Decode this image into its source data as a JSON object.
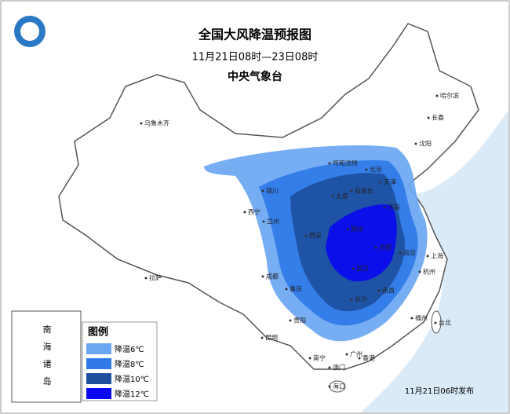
{
  "header": {
    "title": "全国大风降温预报图",
    "period": "11月21日08时—23日08时",
    "agency": "中央气象台"
  },
  "legend": {
    "title": "图例",
    "items": [
      {
        "label": "降温6℃",
        "color": "#6aa6f2"
      },
      {
        "label": "降温8℃",
        "color": "#2f7ae8"
      },
      {
        "label": "降温10℃",
        "color": "#1d4f9e"
      },
      {
        "label": "降温12℃",
        "color": "#0a0af0"
      }
    ]
  },
  "inset": {
    "label": "南海诸岛"
  },
  "cities": [
    "乌鲁木齐",
    "哈尔滨",
    "长春",
    "沈阳",
    "呼和浩特",
    "北京",
    "天津",
    "石家庄",
    "太原",
    "银川",
    "济南",
    "西宁",
    "兰州",
    "郑州",
    "西安",
    "合肥",
    "南京",
    "上海",
    "武汉",
    "杭州",
    "成都",
    "重庆",
    "长沙",
    "南昌",
    "拉萨",
    "贵阳",
    "昆明",
    "福州",
    "台北",
    "南宁",
    "广州",
    "香港",
    "澳门",
    "海口"
  ],
  "issued": "11月21日06时发布"
}
